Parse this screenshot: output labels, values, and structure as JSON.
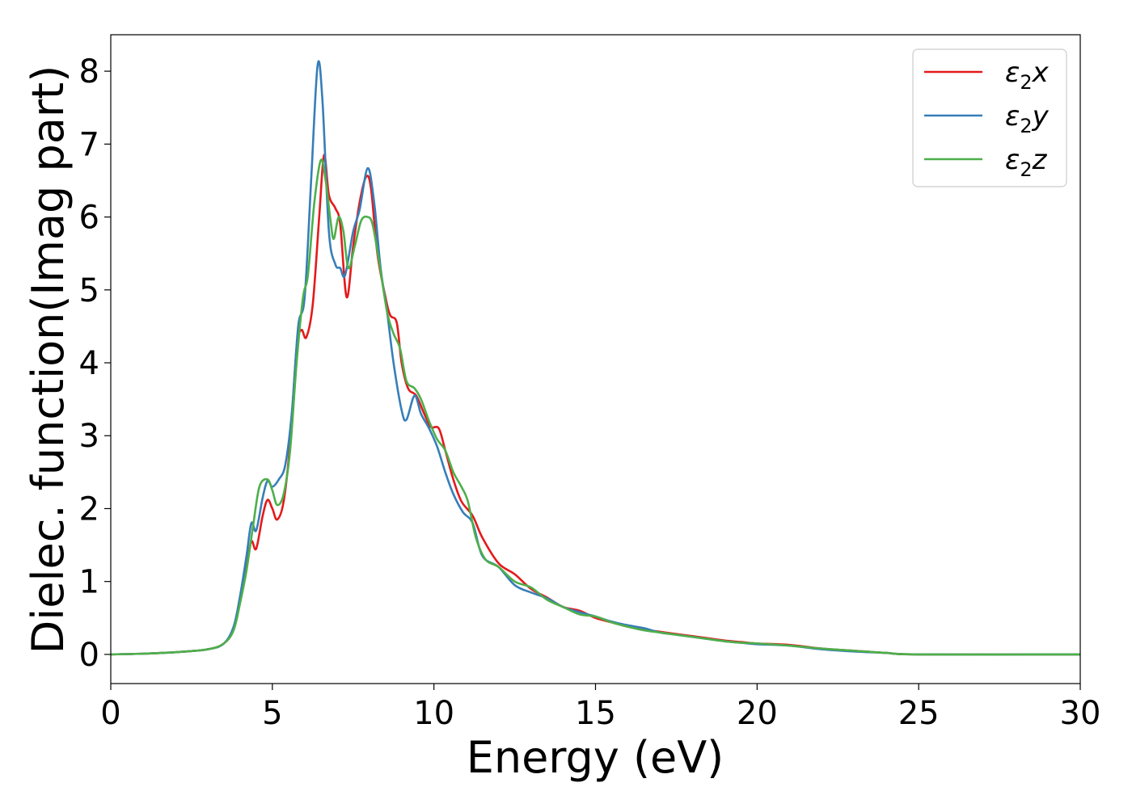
{
  "chart_data": {
    "type": "line",
    "xlabel": "Energy (eV)",
    "ylabel": "Dielec. function(Imag part)",
    "xlim": [
      0,
      30
    ],
    "ylim": [
      -0.4,
      8.5
    ],
    "xticks": [
      "0",
      "5",
      "10",
      "15",
      "20",
      "25",
      "30"
    ],
    "yticks": [
      "0",
      "1",
      "2",
      "3",
      "4",
      "5",
      "6",
      "7",
      "8"
    ],
    "grid": false,
    "legend_position": "top-right",
    "series": [
      {
        "name": "ε₂x",
        "legend_base": "ε",
        "legend_sub": "2",
        "legend_axis": "x",
        "color": "#e41a1c",
        "points": [
          [
            0,
            0.0
          ],
          [
            1,
            0.01
          ],
          [
            2,
            0.03
          ],
          [
            3,
            0.07
          ],
          [
            3.5,
            0.15
          ],
          [
            3.8,
            0.35
          ],
          [
            4.0,
            0.75
          ],
          [
            4.2,
            1.2
          ],
          [
            4.35,
            1.55
          ],
          [
            4.5,
            1.45
          ],
          [
            4.7,
            1.9
          ],
          [
            4.85,
            2.12
          ],
          [
            5.0,
            2.0
          ],
          [
            5.15,
            1.85
          ],
          [
            5.35,
            2.1
          ],
          [
            5.55,
            2.9
          ],
          [
            5.75,
            4.2
          ],
          [
            5.9,
            4.45
          ],
          [
            6.05,
            4.35
          ],
          [
            6.25,
            4.8
          ],
          [
            6.45,
            6.0
          ],
          [
            6.6,
            6.85
          ],
          [
            6.75,
            6.3
          ],
          [
            6.95,
            6.12
          ],
          [
            7.1,
            5.9
          ],
          [
            7.3,
            4.9
          ],
          [
            7.5,
            5.6
          ],
          [
            7.7,
            6.2
          ],
          [
            7.9,
            6.55
          ],
          [
            8.05,
            6.4
          ],
          [
            8.25,
            5.5
          ],
          [
            8.5,
            4.9
          ],
          [
            8.65,
            4.65
          ],
          [
            8.85,
            4.55
          ],
          [
            9.0,
            4.0
          ],
          [
            9.2,
            3.65
          ],
          [
            9.45,
            3.55
          ],
          [
            9.7,
            3.3
          ],
          [
            9.9,
            3.12
          ],
          [
            10.15,
            3.1
          ],
          [
            10.35,
            2.8
          ],
          [
            10.6,
            2.4
          ],
          [
            10.85,
            2.1
          ],
          [
            11.2,
            1.9
          ],
          [
            11.5,
            1.6
          ],
          [
            12.0,
            1.25
          ],
          [
            12.5,
            1.1
          ],
          [
            13.0,
            0.9
          ],
          [
            13.5,
            0.78
          ],
          [
            14.0,
            0.65
          ],
          [
            14.5,
            0.6
          ],
          [
            15.0,
            0.5
          ],
          [
            15.5,
            0.44
          ],
          [
            16.0,
            0.38
          ],
          [
            16.5,
            0.34
          ],
          [
            17.0,
            0.31
          ],
          [
            17.5,
            0.28
          ],
          [
            18.0,
            0.25
          ],
          [
            18.5,
            0.22
          ],
          [
            19.0,
            0.19
          ],
          [
            19.5,
            0.17
          ],
          [
            20.0,
            0.15
          ],
          [
            21.0,
            0.13
          ],
          [
            22.0,
            0.08
          ],
          [
            23.0,
            0.05
          ],
          [
            24.0,
            0.02
          ],
          [
            25.0,
            0.0
          ],
          [
            30.0,
            0.0
          ]
        ]
      },
      {
        "name": "ε₂y",
        "legend_base": "ε",
        "legend_sub": "2",
        "legend_axis": "y",
        "color": "#377eb8",
        "points": [
          [
            0,
            0.0
          ],
          [
            1,
            0.01
          ],
          [
            2,
            0.03
          ],
          [
            3,
            0.07
          ],
          [
            3.5,
            0.15
          ],
          [
            3.8,
            0.38
          ],
          [
            4.0,
            0.8
          ],
          [
            4.2,
            1.35
          ],
          [
            4.35,
            1.8
          ],
          [
            4.5,
            1.7
          ],
          [
            4.7,
            2.15
          ],
          [
            4.85,
            2.38
          ],
          [
            5.0,
            2.3
          ],
          [
            5.2,
            2.4
          ],
          [
            5.4,
            2.6
          ],
          [
            5.6,
            3.3
          ],
          [
            5.8,
            4.5
          ],
          [
            6.0,
            4.9
          ],
          [
            6.2,
            6.5
          ],
          [
            6.4,
            8.08
          ],
          [
            6.55,
            7.6
          ],
          [
            6.75,
            5.8
          ],
          [
            6.95,
            5.35
          ],
          [
            7.1,
            5.3
          ],
          [
            7.25,
            5.2
          ],
          [
            7.5,
            5.8
          ],
          [
            7.7,
            6.1
          ],
          [
            7.95,
            6.67
          ],
          [
            8.15,
            6.2
          ],
          [
            8.35,
            5.3
          ],
          [
            8.55,
            4.7
          ],
          [
            8.75,
            4.0
          ],
          [
            9.0,
            3.35
          ],
          [
            9.15,
            3.22
          ],
          [
            9.4,
            3.55
          ],
          [
            9.6,
            3.3
          ],
          [
            9.85,
            3.1
          ],
          [
            10.1,
            2.85
          ],
          [
            10.35,
            2.5
          ],
          [
            10.6,
            2.2
          ],
          [
            10.9,
            1.95
          ],
          [
            11.2,
            1.8
          ],
          [
            11.5,
            1.35
          ],
          [
            12.0,
            1.2
          ],
          [
            12.5,
            0.95
          ],
          [
            13.0,
            0.85
          ],
          [
            13.5,
            0.77
          ],
          [
            14.0,
            0.65
          ],
          [
            14.5,
            0.58
          ],
          [
            15.0,
            0.52
          ],
          [
            15.5,
            0.45
          ],
          [
            16.0,
            0.4
          ],
          [
            16.5,
            0.36
          ],
          [
            17.0,
            0.3
          ],
          [
            17.5,
            0.27
          ],
          [
            18.0,
            0.24
          ],
          [
            18.5,
            0.21
          ],
          [
            19.0,
            0.18
          ],
          [
            19.5,
            0.16
          ],
          [
            20.0,
            0.14
          ],
          [
            21.0,
            0.12
          ],
          [
            22.0,
            0.07
          ],
          [
            23.0,
            0.04
          ],
          [
            24.0,
            0.02
          ],
          [
            25.0,
            0.0
          ],
          [
            30.0,
            0.0
          ]
        ]
      },
      {
        "name": "ε₂z",
        "legend_base": "ε",
        "legend_sub": "2",
        "legend_axis": "z",
        "color": "#4daf4a",
        "points": [
          [
            0,
            0.0
          ],
          [
            1,
            0.01
          ],
          [
            2,
            0.03
          ],
          [
            3,
            0.07
          ],
          [
            3.5,
            0.15
          ],
          [
            3.8,
            0.33
          ],
          [
            4.0,
            0.7
          ],
          [
            4.2,
            1.15
          ],
          [
            4.4,
            1.75
          ],
          [
            4.6,
            2.3
          ],
          [
            4.85,
            2.4
          ],
          [
            5.0,
            2.25
          ],
          [
            5.15,
            2.05
          ],
          [
            5.35,
            2.2
          ],
          [
            5.55,
            2.8
          ],
          [
            5.75,
            4.0
          ],
          [
            5.95,
            4.9
          ],
          [
            6.1,
            5.2
          ],
          [
            6.3,
            6.2
          ],
          [
            6.5,
            6.78
          ],
          [
            6.65,
            6.5
          ],
          [
            6.8,
            5.95
          ],
          [
            6.9,
            5.7
          ],
          [
            7.05,
            6.0
          ],
          [
            7.2,
            5.8
          ],
          [
            7.35,
            5.3
          ],
          [
            7.55,
            5.6
          ],
          [
            7.75,
            5.95
          ],
          [
            7.95,
            6.0
          ],
          [
            8.1,
            5.9
          ],
          [
            8.3,
            5.4
          ],
          [
            8.55,
            4.7
          ],
          [
            8.75,
            4.4
          ],
          [
            8.95,
            4.2
          ],
          [
            9.15,
            3.75
          ],
          [
            9.4,
            3.65
          ],
          [
            9.6,
            3.5
          ],
          [
            9.85,
            3.2
          ],
          [
            10.1,
            2.95
          ],
          [
            10.35,
            2.8
          ],
          [
            10.6,
            2.5
          ],
          [
            10.85,
            2.3
          ],
          [
            11.05,
            2.1
          ],
          [
            11.3,
            1.6
          ],
          [
            11.6,
            1.3
          ],
          [
            12.0,
            1.2
          ],
          [
            12.5,
            1.0
          ],
          [
            13.0,
            0.92
          ],
          [
            13.5,
            0.75
          ],
          [
            14.0,
            0.65
          ],
          [
            14.5,
            0.55
          ],
          [
            15.0,
            0.52
          ],
          [
            15.5,
            0.44
          ],
          [
            16.0,
            0.38
          ],
          [
            16.5,
            0.33
          ],
          [
            17.0,
            0.3
          ],
          [
            17.5,
            0.27
          ],
          [
            18.0,
            0.24
          ],
          [
            18.5,
            0.21
          ],
          [
            19.0,
            0.18
          ],
          [
            19.5,
            0.16
          ],
          [
            20.0,
            0.15
          ],
          [
            21.0,
            0.12
          ],
          [
            22.0,
            0.08
          ],
          [
            23.0,
            0.05
          ],
          [
            24.0,
            0.02
          ],
          [
            25.0,
            0.0
          ],
          [
            30.0,
            0.0
          ]
        ]
      }
    ]
  }
}
